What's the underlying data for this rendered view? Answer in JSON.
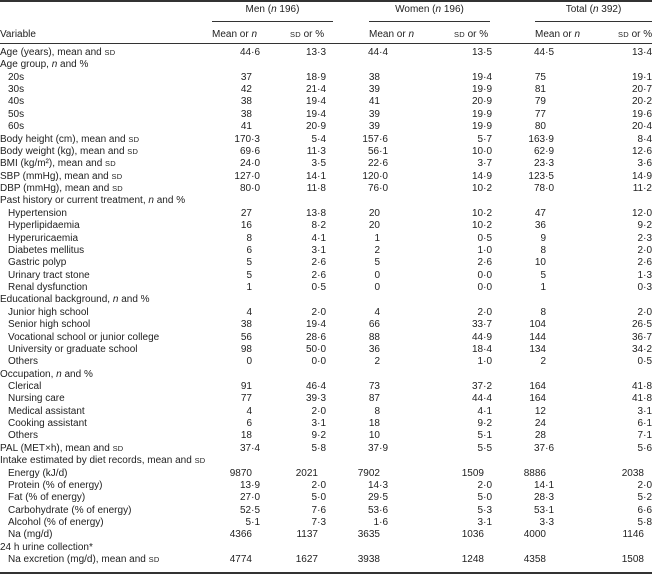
{
  "table": {
    "groups": [
      {
        "label": "Men (n 196)"
      },
      {
        "label": "Women (n 196)"
      },
      {
        "label": "Total (n 392)"
      }
    ],
    "variable_header": "Variable",
    "subheaders": [
      "Mean or n",
      "sd or %",
      "Mean or n",
      "sd or %",
      "Mean or n",
      "sd or %"
    ],
    "rows": [
      {
        "label": "Age (years), mean and sd",
        "indent": false,
        "values": [
          "44·6",
          "13·3",
          "44·4",
          "13·5",
          "44·5",
          "13·4"
        ]
      },
      {
        "label": "Age group, n and %",
        "indent": false,
        "values": []
      },
      {
        "label": "20s",
        "indent": true,
        "values": [
          "37",
          "18·9",
          "38",
          "19·4",
          "75",
          "19·1"
        ]
      },
      {
        "label": "30s",
        "indent": true,
        "values": [
          "42",
          "21·4",
          "39",
          "19·9",
          "81",
          "20·7"
        ]
      },
      {
        "label": "40s",
        "indent": true,
        "values": [
          "38",
          "19·4",
          "41",
          "20·9",
          "79",
          "20·2"
        ]
      },
      {
        "label": "50s",
        "indent": true,
        "values": [
          "38",
          "19·4",
          "39",
          "19·9",
          "77",
          "19·6"
        ]
      },
      {
        "label": "60s",
        "indent": true,
        "values": [
          "41",
          "20·9",
          "39",
          "19·9",
          "80",
          "20·4"
        ]
      },
      {
        "label": "Body height (cm), mean and sd",
        "indent": false,
        "values": [
          "170·3",
          "5·4",
          "157·6",
          "5·7",
          "163·9",
          "8·4"
        ]
      },
      {
        "label": "Body weight (kg), mean and sd",
        "indent": false,
        "values": [
          "69·6",
          "11·3",
          "56·1",
          "10·0",
          "62·9",
          "12·6"
        ]
      },
      {
        "label": "BMI (kg/m²), mean and sd",
        "indent": false,
        "values": [
          "24·0",
          "3·5",
          "22·6",
          "3·7",
          "23·3",
          "3·6"
        ]
      },
      {
        "label": "SBP (mmHg), mean and sd",
        "indent": false,
        "values": [
          "127·0",
          "14·1",
          "120·0",
          "14·9",
          "123·5",
          "14·9"
        ]
      },
      {
        "label": "DBP (mmHg), mean and sd",
        "indent": false,
        "values": [
          "80·0",
          "11·8",
          "76·0",
          "10·2",
          "78·0",
          "11·2"
        ]
      },
      {
        "label": "Past history or current treatment, n and %",
        "indent": false,
        "values": []
      },
      {
        "label": "Hypertension",
        "indent": true,
        "values": [
          "27",
          "13·8",
          "20",
          "10·2",
          "47",
          "12·0"
        ]
      },
      {
        "label": "Hyperlipidaemia",
        "indent": true,
        "values": [
          "16",
          "8·2",
          "20",
          "10·2",
          "36",
          "9·2"
        ]
      },
      {
        "label": "Hyperuricaemia",
        "indent": true,
        "values": [
          "8",
          "4·1",
          "1",
          "0·5",
          "9",
          "2·3"
        ]
      },
      {
        "label": "Diabetes mellitus",
        "indent": true,
        "values": [
          "6",
          "3·1",
          "2",
          "1·0",
          "8",
          "2·0"
        ]
      },
      {
        "label": "Gastric polyp",
        "indent": true,
        "values": [
          "5",
          "2·6",
          "5",
          "2·6",
          "10",
          "2·6"
        ]
      },
      {
        "label": "Urinary tract stone",
        "indent": true,
        "values": [
          "5",
          "2·6",
          "0",
          "0·0",
          "5",
          "1·3"
        ]
      },
      {
        "label": "Renal dysfunction",
        "indent": true,
        "values": [
          "1",
          "0·5",
          "0",
          "0·0",
          "1",
          "0·3"
        ]
      },
      {
        "label": "Educational background, n and %",
        "indent": false,
        "values": []
      },
      {
        "label": "Junior high school",
        "indent": true,
        "values": [
          "4",
          "2·0",
          "4",
          "2·0",
          "8",
          "2·0"
        ]
      },
      {
        "label": "Senior high school",
        "indent": true,
        "values": [
          "38",
          "19·4",
          "66",
          "33·7",
          "104",
          "26·5"
        ]
      },
      {
        "label": "Vocational school or junior college",
        "indent": true,
        "values": [
          "56",
          "28·6",
          "88",
          "44·9",
          "144",
          "36·7"
        ]
      },
      {
        "label": "University or graduate school",
        "indent": true,
        "values": [
          "98",
          "50·0",
          "36",
          "18·4",
          "134",
          "34·2"
        ]
      },
      {
        "label": "Others",
        "indent": true,
        "values": [
          "0",
          "0·0",
          "2",
          "1·0",
          "2",
          "0·5"
        ]
      },
      {
        "label": "Occupation, n and %",
        "indent": false,
        "values": []
      },
      {
        "label": "Clerical",
        "indent": true,
        "values": [
          "91",
          "46·4",
          "73",
          "37·2",
          "164",
          "41·8"
        ]
      },
      {
        "label": "Nursing care",
        "indent": true,
        "values": [
          "77",
          "39·3",
          "87",
          "44·4",
          "164",
          "41·8"
        ]
      },
      {
        "label": "Medical assistant",
        "indent": true,
        "values": [
          "4",
          "2·0",
          "8",
          "4·1",
          "12",
          "3·1"
        ]
      },
      {
        "label": "Cooking assistant",
        "indent": true,
        "values": [
          "6",
          "3·1",
          "18",
          "9·2",
          "24",
          "6·1"
        ]
      },
      {
        "label": "Others",
        "indent": true,
        "values": [
          "18",
          "9·2",
          "10",
          "5·1",
          "28",
          "7·1"
        ]
      },
      {
        "label": "PAL (MET×h), mean and sd",
        "indent": false,
        "values": [
          "37·4",
          "5·8",
          "37·9",
          "5·5",
          "37·6",
          "5·6"
        ]
      },
      {
        "label": "Intake estimated by diet records, mean and sd",
        "indent": false,
        "values": []
      },
      {
        "label": "Energy (kJ/d)",
        "indent": true,
        "values": [
          "9870",
          "2021",
          "7902",
          "1509",
          "8886",
          "2038"
        ]
      },
      {
        "label": "Protein (% of energy)",
        "indent": true,
        "values": [
          "13·9",
          "2·0",
          "14·3",
          "2·0",
          "14·1",
          "2·0"
        ]
      },
      {
        "label": "Fat (% of energy)",
        "indent": true,
        "values": [
          "27·0",
          "5·0",
          "29·5",
          "5·0",
          "28·3",
          "5·2"
        ]
      },
      {
        "label": "Carbohydrate (% of energy)",
        "indent": true,
        "values": [
          "52·5",
          "7·6",
          "53·6",
          "5·3",
          "53·1",
          "6·6"
        ]
      },
      {
        "label": "Alcohol (% of energy)",
        "indent": true,
        "values": [
          "5·1",
          "7·3",
          "1·6",
          "3·1",
          "3·3",
          "5·8"
        ]
      },
      {
        "label": "Na (mg/d)",
        "indent": true,
        "values": [
          "4366",
          "1137",
          "3635",
          "1036",
          "4000",
          "1146"
        ]
      },
      {
        "label": "24 h urine collection*",
        "indent": false,
        "values": []
      },
      {
        "label": "Na excretion (mg/d), mean and sd",
        "indent": true,
        "values": [
          "4774",
          "1627",
          "3938",
          "1248",
          "4358",
          "1508"
        ]
      }
    ]
  }
}
